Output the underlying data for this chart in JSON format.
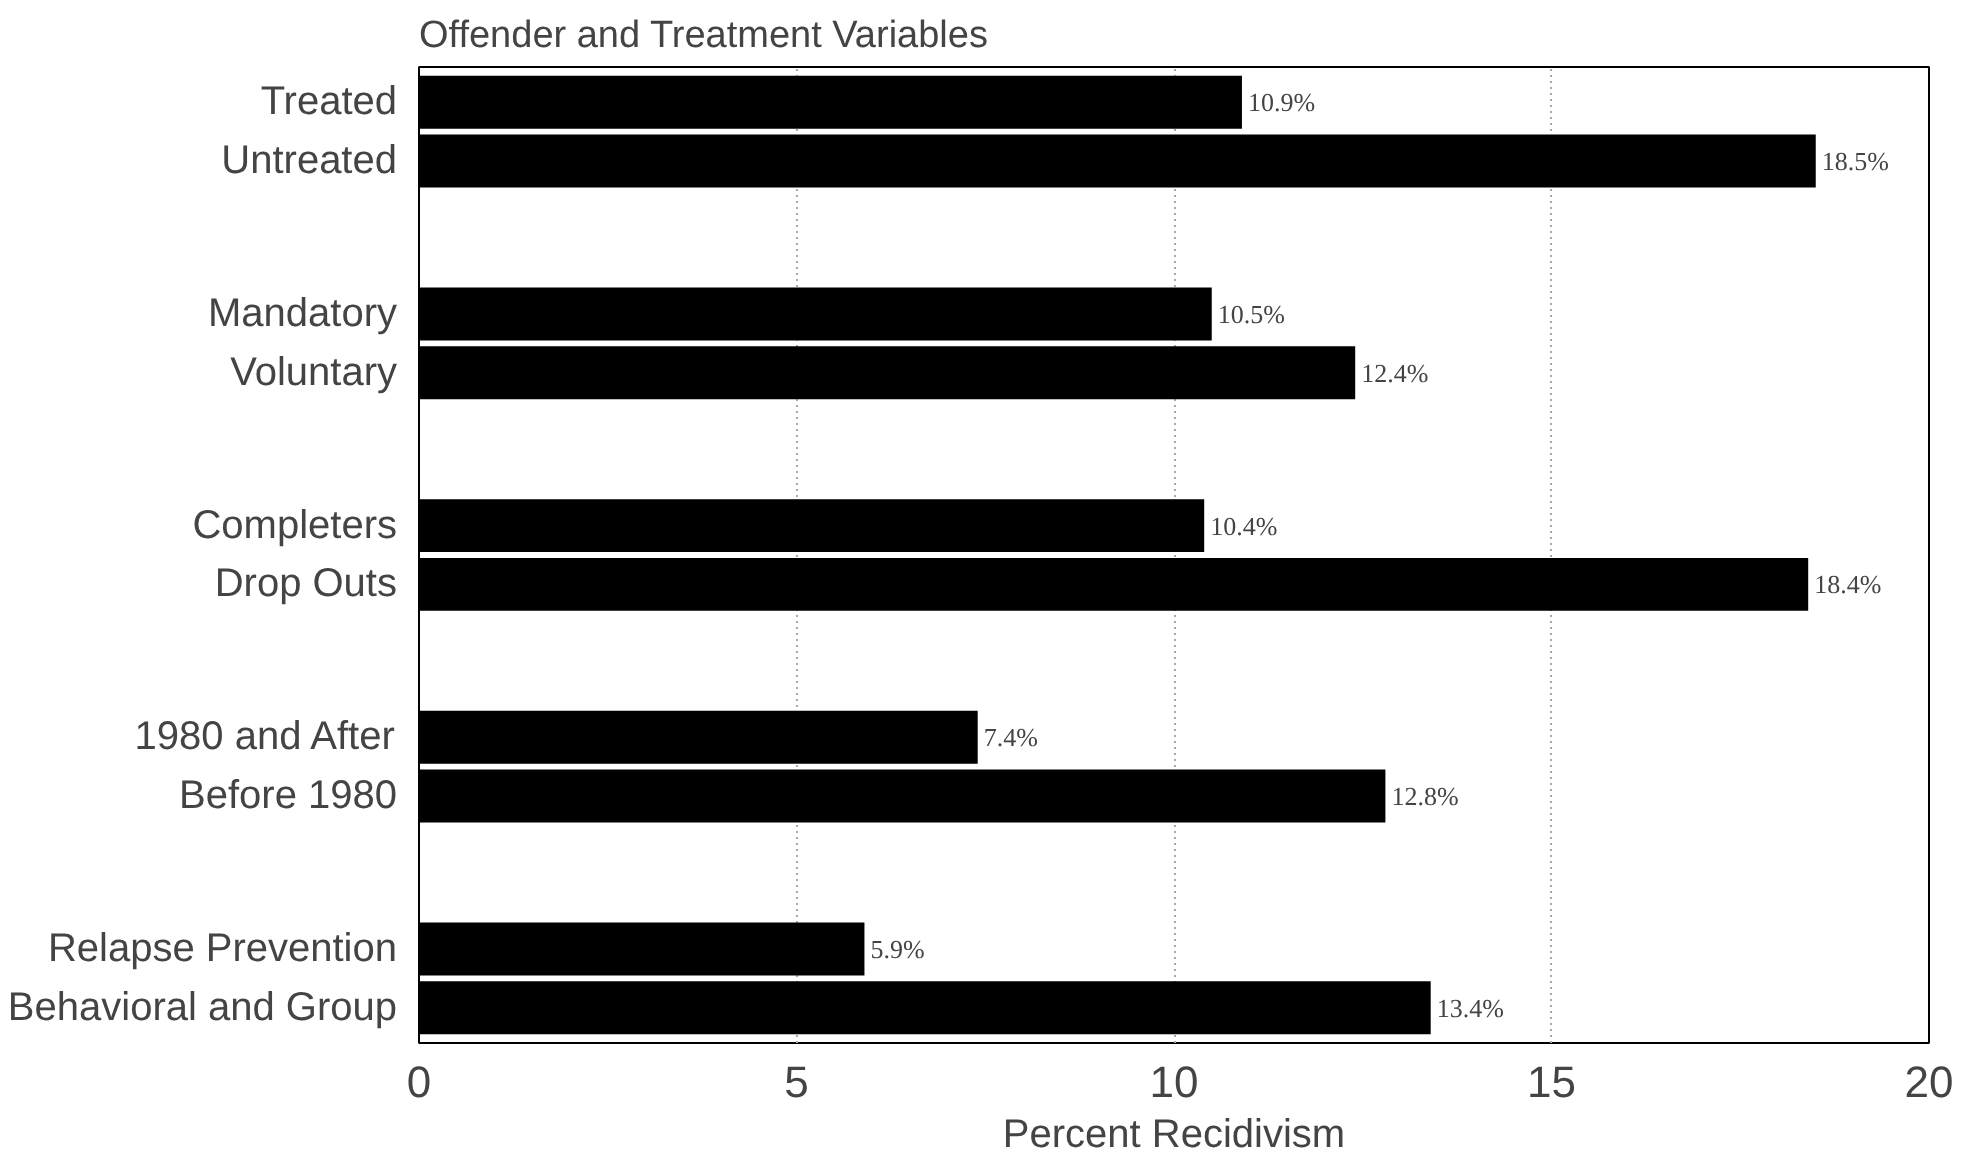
{
  "chart_data": {
    "type": "bar",
    "orientation": "horizontal",
    "title": "Offender and Treatment Variables",
    "xlabel": "Percent Recidivism",
    "categories": [
      "Treated",
      "Untreated",
      "Mandatory",
      "Voluntary",
      "Completers",
      "Drop Outs",
      "1980 and After",
      "Before 1980",
      "Relapse Prevention",
      "Behavioral and Group"
    ],
    "values": [
      10.9,
      18.5,
      10.5,
      12.4,
      10.4,
      18.4,
      7.4,
      12.8,
      5.9,
      13.4
    ],
    "value_labels": [
      "10.9%",
      "18.5%",
      "10.5%",
      "12.4%",
      "10.4%",
      "18.4%",
      "7.4%",
      "12.8%",
      "5.9%",
      "13.4%"
    ],
    "color": "#000000",
    "xlim": [
      0,
      20
    ],
    "xticks": [
      0,
      5,
      10,
      15,
      20
    ],
    "grid": "x"
  }
}
